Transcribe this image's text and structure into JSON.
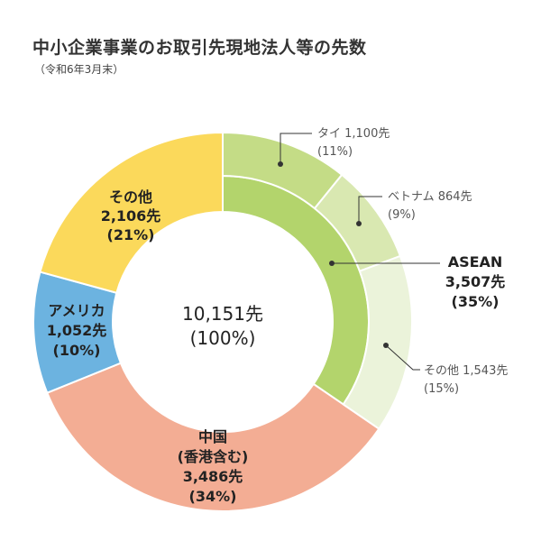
{
  "title": "中小企業事業のお取引先現地法人等の先数",
  "subtitle": "（令和6年3月末）",
  "chart_data": {
    "type": "donut",
    "title": "中小企業事業のお取引先現地法人等の先数",
    "subtitle": "（令和6年3月末）",
    "center": {
      "value": "10,151先",
      "percent": "(100%)"
    },
    "total": 10151,
    "series": [
      {
        "key": "asean",
        "name": "ASEAN",
        "value": 3507,
        "value_text": "3,507先",
        "percent_text": "(35%)",
        "color": "#b3d46c"
      },
      {
        "key": "china",
        "name": "中国",
        "sub": "(香港含む)",
        "value": 3486,
        "value_text": "3,486先",
        "percent_text": "(34%)",
        "color": "#f3ad94"
      },
      {
        "key": "usa",
        "name": "アメリカ",
        "value": 1052,
        "value_text": "1,052先",
        "percent_text": "(10%)",
        "color": "#6cb3e0"
      },
      {
        "key": "other",
        "name": "その他",
        "value": 2106,
        "value_text": "2,106先",
        "percent_text": "(21%)",
        "color": "#fbd95b"
      }
    ],
    "asean_breakdown": [
      {
        "key": "thai",
        "name": "タイ",
        "value": 1100,
        "value_text": "1,100先",
        "percent_text": "(11%)",
        "color": "#c4dc86"
      },
      {
        "key": "vietnam",
        "name": "ベトナム",
        "value": 864,
        "value_text": "864先",
        "percent_text": "(9%)",
        "color": "#d9e8b1"
      },
      {
        "key": "asean_other",
        "name": "その他",
        "value": 1543,
        "value_text": "1,543先",
        "percent_text": "(15%)",
        "color": "#ebf3da"
      }
    ]
  }
}
